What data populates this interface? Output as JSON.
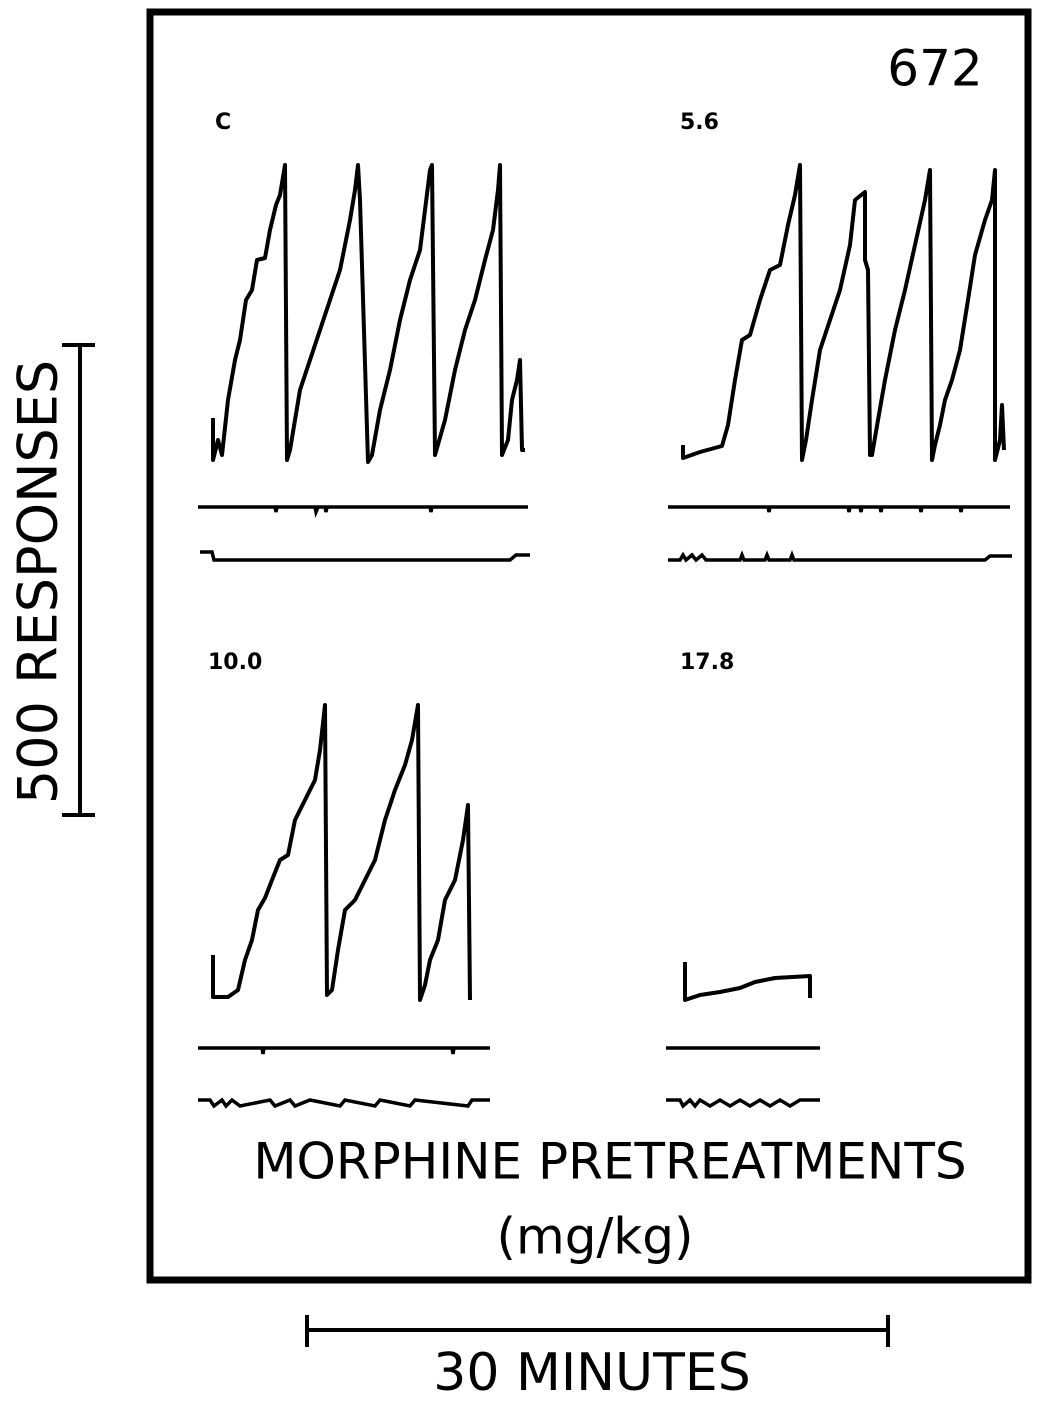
{
  "figure_id": "672",
  "panels": [
    {
      "label": "C"
    },
    {
      "label": "5.6"
    },
    {
      "label": "10.0"
    },
    {
      "label": "17.8"
    }
  ],
  "y_scale": "500 RESPONSES",
  "x_scale": "30 MINUTES",
  "caption": {
    "line1": "MORPHINE PRETREATMENTS",
    "line2": "(mg/kg)"
  }
}
